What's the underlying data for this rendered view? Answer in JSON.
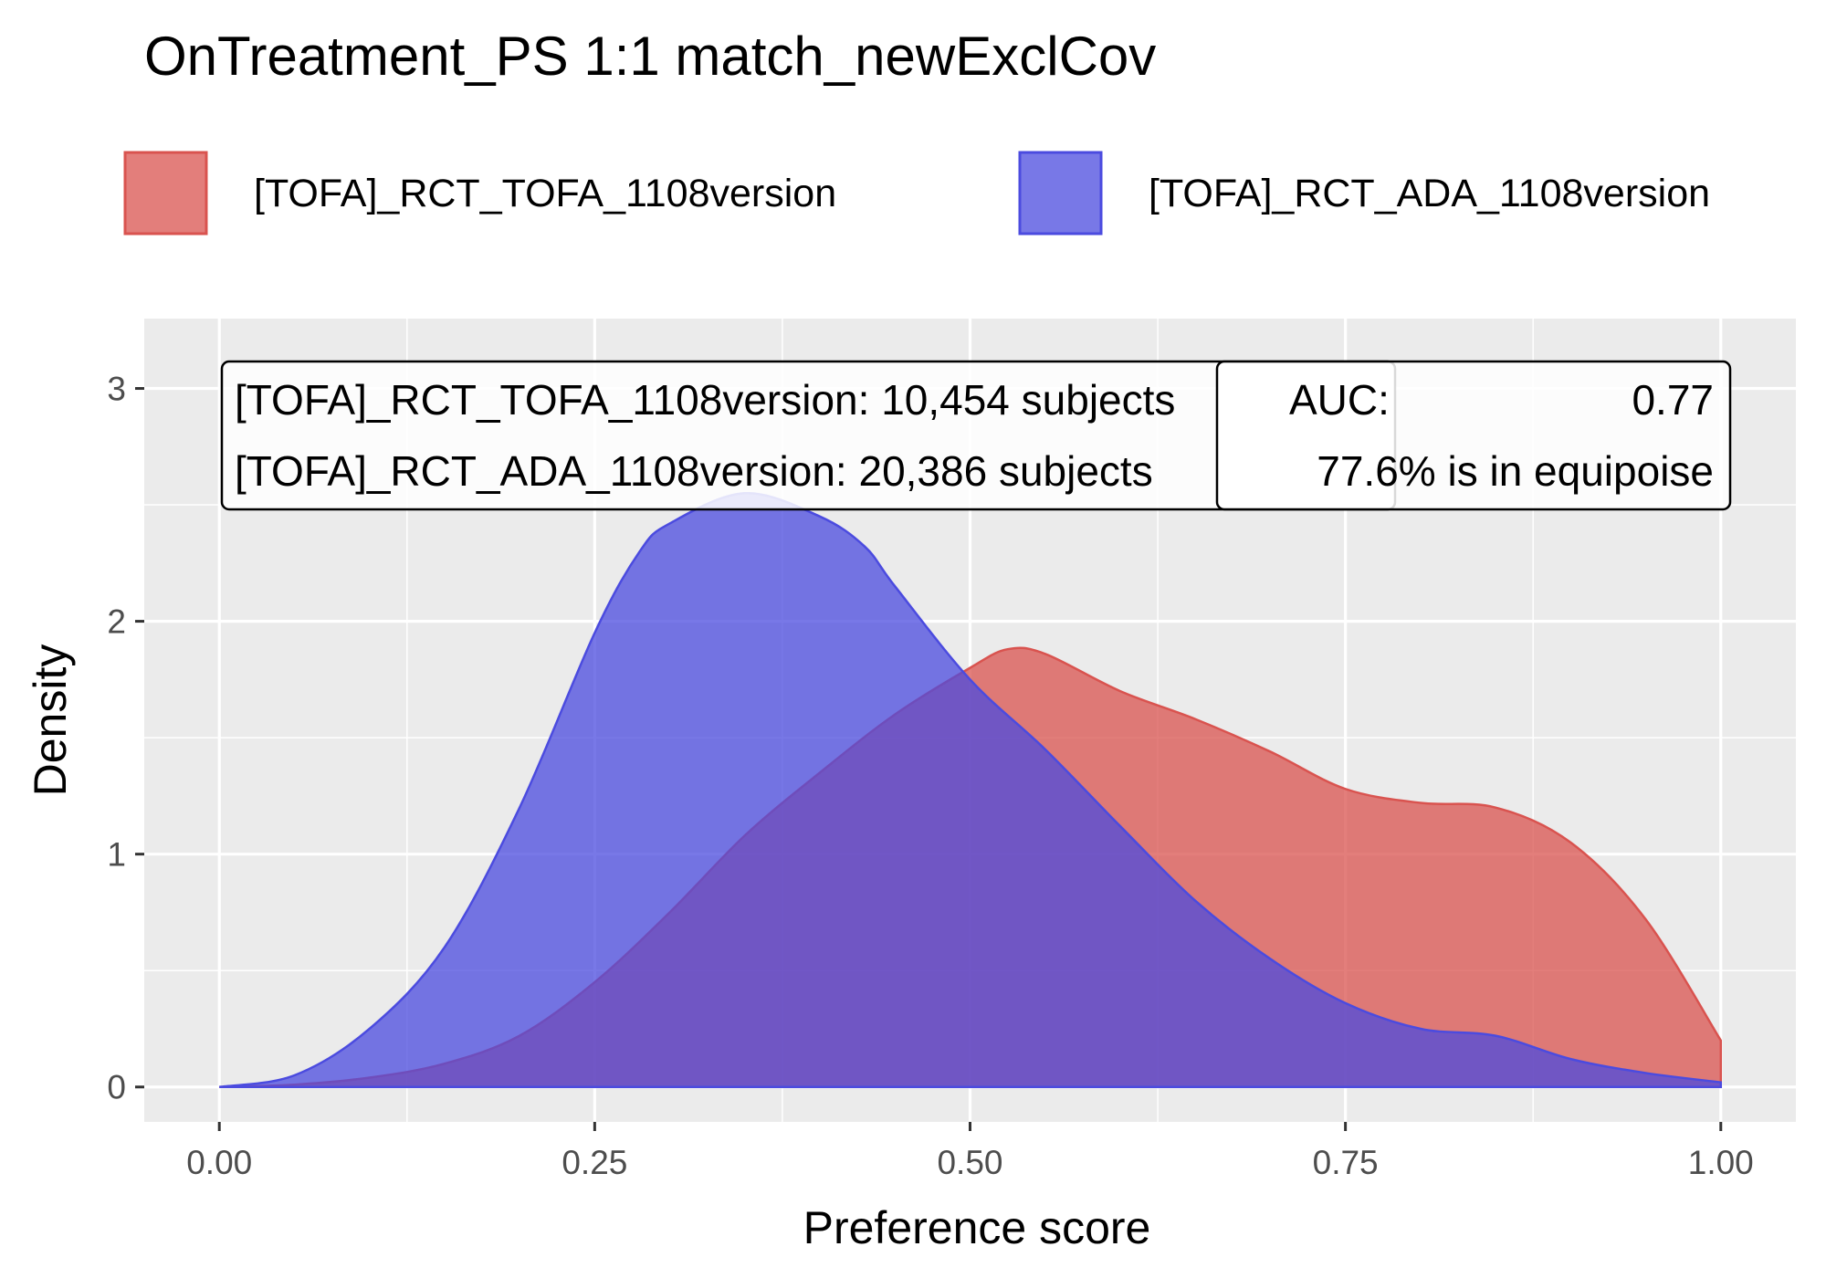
{
  "chart_data": {
    "type": "area",
    "title": "OnTreatment_PS 1:1 match_newExclCov",
    "xlabel": "Preference score",
    "ylabel": "Density",
    "xlim": [
      -0.05,
      1.05
    ],
    "ylim": [
      -0.15,
      3.3
    ],
    "x_ticks": [
      "0.00",
      "0.25",
      "0.50",
      "0.75",
      "1.00"
    ],
    "y_ticks": [
      "0",
      "1",
      "2",
      "3"
    ],
    "grid": true,
    "legend_position": "top",
    "series": [
      {
        "name": "[TOFA]_RCT_TOFA_1108version",
        "color": "#d9534f",
        "x": [
          0.0,
          0.05,
          0.1,
          0.15,
          0.2,
          0.25,
          0.3,
          0.35,
          0.4,
          0.45,
          0.5,
          0.525,
          0.55,
          0.6,
          0.65,
          0.7,
          0.75,
          0.8,
          0.85,
          0.9,
          0.95,
          1.0
        ],
        "y": [
          0.0,
          0.01,
          0.04,
          0.1,
          0.22,
          0.45,
          0.75,
          1.08,
          1.35,
          1.6,
          1.8,
          1.88,
          1.86,
          1.7,
          1.58,
          1.44,
          1.28,
          1.22,
          1.2,
          1.05,
          0.72,
          0.2
        ]
      },
      {
        "name": "[TOFA]_RCT_ADA_1108version",
        "color": "#4b4bdf",
        "x": [
          0.0,
          0.05,
          0.1,
          0.15,
          0.2,
          0.25,
          0.28,
          0.3,
          0.35,
          0.4,
          0.43,
          0.45,
          0.5,
          0.55,
          0.6,
          0.65,
          0.7,
          0.75,
          0.8,
          0.85,
          0.9,
          0.95,
          1.0
        ],
        "y": [
          0.0,
          0.05,
          0.25,
          0.6,
          1.2,
          1.95,
          2.3,
          2.42,
          2.55,
          2.45,
          2.32,
          2.15,
          1.75,
          1.45,
          1.12,
          0.8,
          0.55,
          0.36,
          0.25,
          0.22,
          0.12,
          0.06,
          0.02
        ]
      }
    ],
    "annotations": {
      "subjects_lines": [
        "[TOFA]_RCT_TOFA_1108version: 10,454 subjects",
        "[TOFA]_RCT_ADA_1108version: 20,386 subjects"
      ],
      "auc_label": "AUC:",
      "auc_value": "0.77",
      "equipoise": "77.6% is in equipoise"
    }
  },
  "colors": {
    "panel_background": "#ebebeb",
    "grid": "#ffffff",
    "overlap_approx": "#6a3b9e"
  }
}
